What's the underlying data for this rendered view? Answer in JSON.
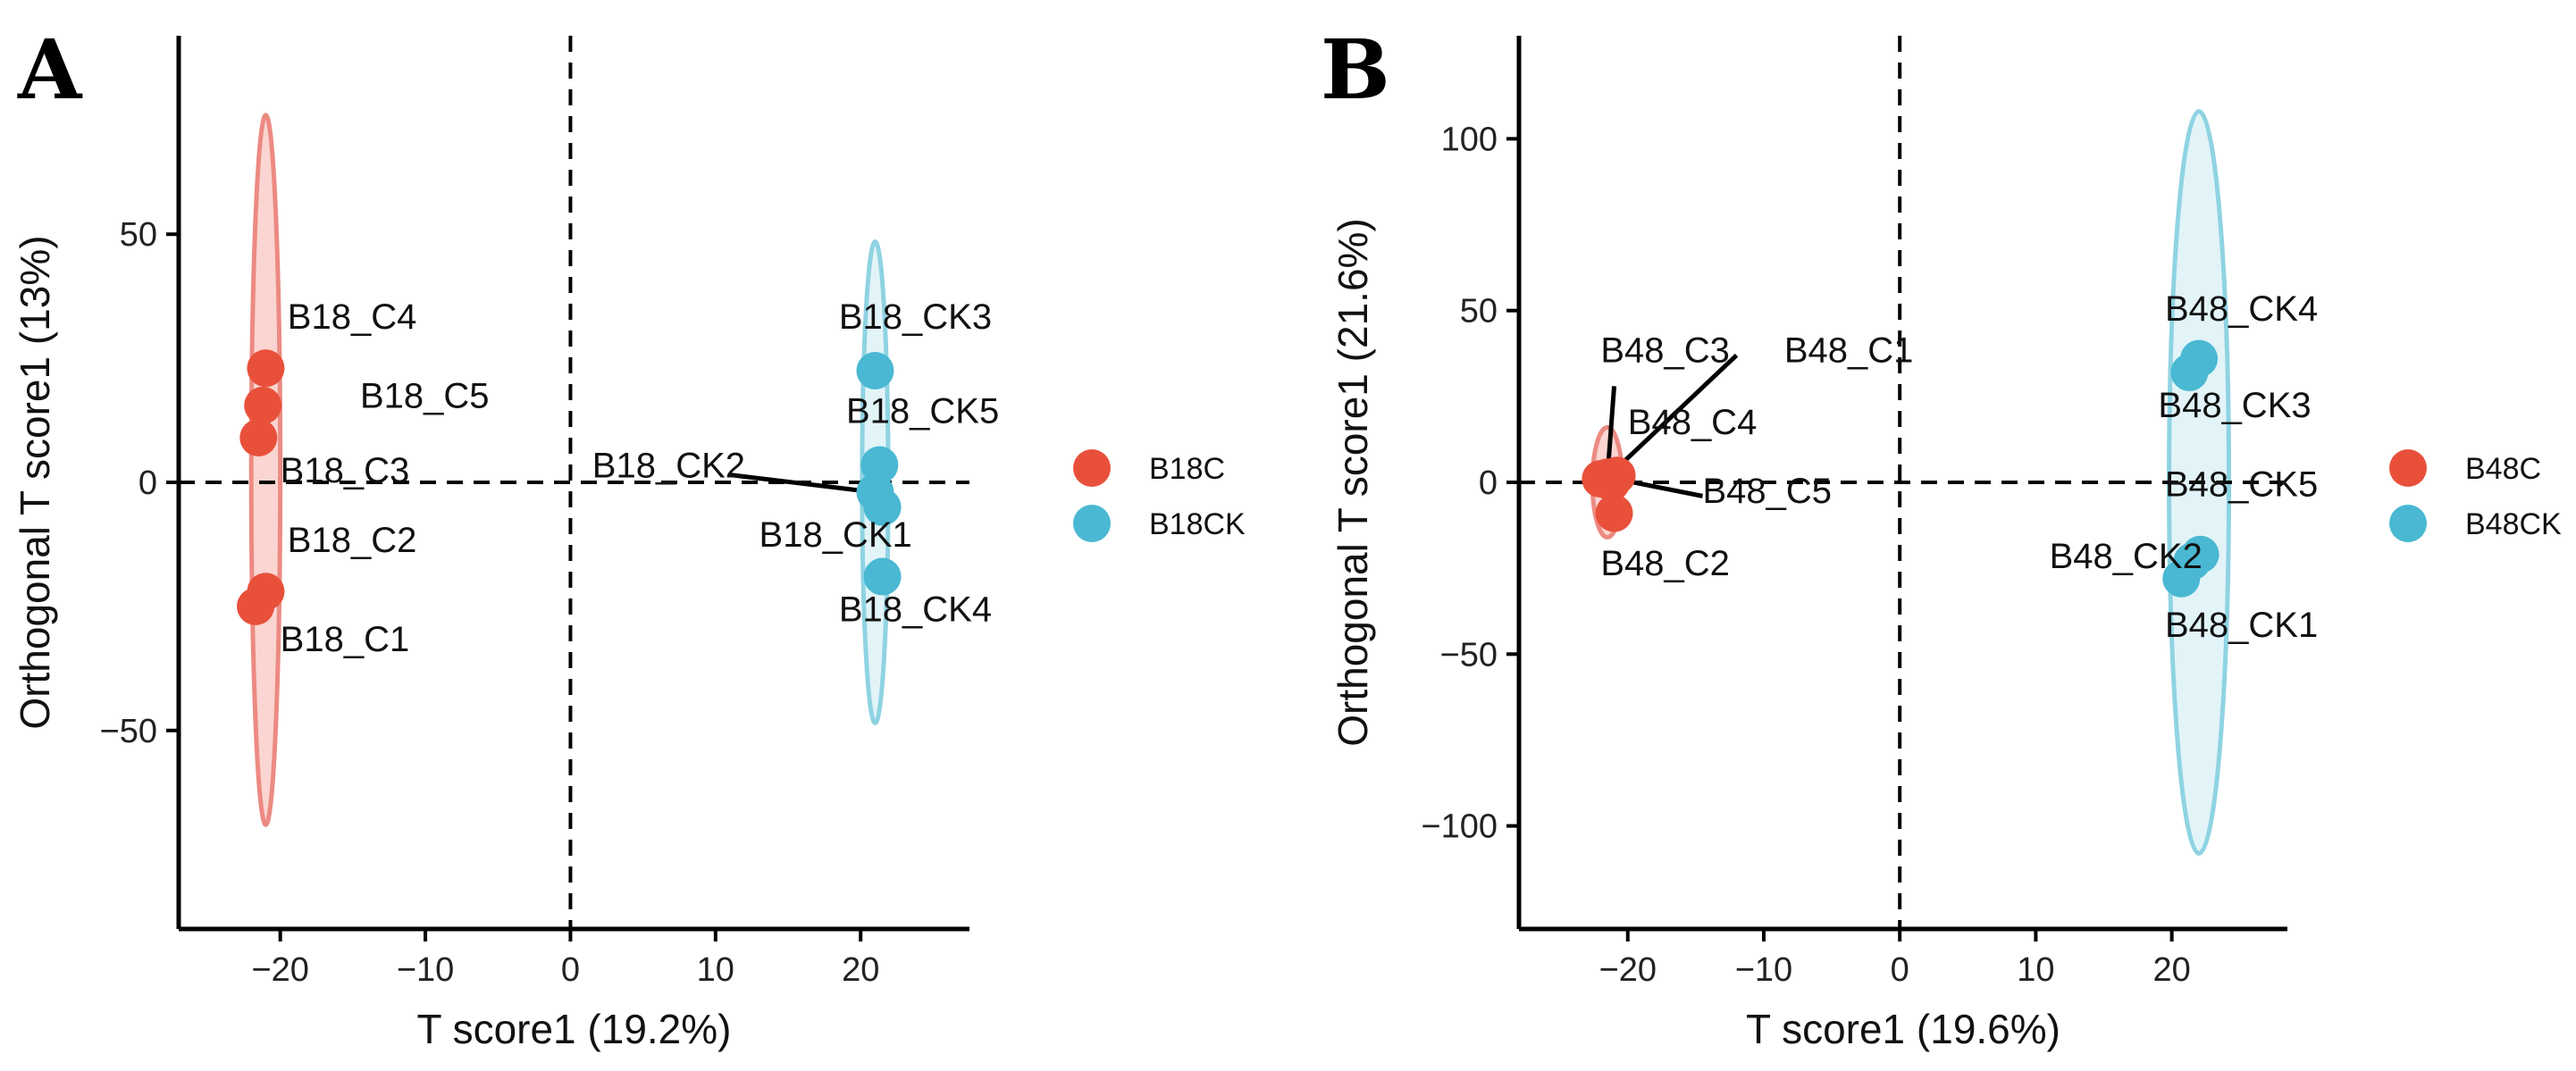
{
  "figure": {
    "panels": [
      "A",
      "B"
    ]
  },
  "chart_data": [
    {
      "panel": "A",
      "type": "scatter",
      "xlabel": "T score1 (19.2%)",
      "ylabel": "Orthogonal T score1 (13%)",
      "xlim": [
        -27,
        27.5
      ],
      "ylim": [
        -90,
        90
      ],
      "xticks": [
        -20,
        -10,
        0,
        10,
        20
      ],
      "yticks": [
        -50,
        0,
        50
      ],
      "xtick_labels": [
        "−20",
        "−10",
        "0",
        "10",
        "20"
      ],
      "ytick_labels": [
        "−50",
        "0",
        "50"
      ],
      "reference_lines": {
        "x": 0,
        "y": 0,
        "style": "dashed"
      },
      "legend": {
        "placement": "right",
        "entries": [
          {
            "label": "B18C",
            "color": "#e8503a"
          },
          {
            "label": "B18CK",
            "color": "#4ab8d2"
          }
        ]
      },
      "ellipses": [
        {
          "group": "B18C",
          "center": [
            -21,
            2.5
          ],
          "x_half": 1.0,
          "y_half": 71.5,
          "fill": "#f3a29a",
          "stroke": "#ec8a82"
        },
        {
          "group": "B18CK",
          "center": [
            21,
            0
          ],
          "x_half": 0.9,
          "y_half": 48.5,
          "fill": "#bfe6ef",
          "stroke": "#8fd3e2"
        }
      ],
      "series": [
        {
          "name": "B18C",
          "color": "#e8503a",
          "points": [
            {
              "label": "B18_C1",
              "x": -21.7,
              "y": -25
            },
            {
              "label": "B18_C2",
              "x": -21.0,
              "y": -22
            },
            {
              "label": "B18_C3",
              "x": -21.5,
              "y": 9
            },
            {
              "label": "B18_C4",
              "x": -21.0,
              "y": 23
            },
            {
              "label": "B18_C5",
              "x": -21.2,
              "y": 15.5
            }
          ]
        },
        {
          "name": "B18CK",
          "color": "#4ab8d2",
          "points": [
            {
              "label": "B18_CK1",
              "x": 21.5,
              "y": -5
            },
            {
              "label": "B18_CK2",
              "x": 21.0,
              "y": -2
            },
            {
              "label": "B18_CK3",
              "x": 21.0,
              "y": 22.5
            },
            {
              "label": "B18_CK4",
              "x": 21.5,
              "y": -19
            },
            {
              "label": "B18_CK5",
              "x": 21.3,
              "y": 3.5
            }
          ]
        }
      ],
      "annotations": [
        {
          "text": "B18_C4",
          "x": -19.5,
          "y": 31
        },
        {
          "text": "B18_C5",
          "x": -14.5,
          "y": 15
        },
        {
          "text": "B18_C3",
          "x": -20,
          "y": 0
        },
        {
          "text": "B18_C2",
          "x": -19.5,
          "y": -14
        },
        {
          "text": "B18_C1",
          "x": -20,
          "y": -34
        },
        {
          "text": "B18_CK3",
          "x": 18.5,
          "y": 31
        },
        {
          "text": "B18_CK5",
          "x": 19,
          "y": 12
        },
        {
          "text": "B18_CK2",
          "x": 1.5,
          "y": 1
        },
        {
          "text": "B18_CK1",
          "x": 13,
          "y": -13
        },
        {
          "text": "B18_CK4",
          "x": 18.5,
          "y": -28
        }
      ],
      "leader_lines": [
        {
          "from": [
            11,
            1.5
          ],
          "to": [
            21,
            -2
          ]
        }
      ]
    },
    {
      "panel": "B",
      "type": "scatter",
      "xlabel": "T score1 (19.6%)",
      "ylabel": "Orthogonal T score1 (21.6%)",
      "xlim": [
        -28,
        28.5
      ],
      "ylim": [
        -130,
        130
      ],
      "xticks": [
        -20,
        -10,
        0,
        10,
        20
      ],
      "yticks": [
        -100,
        -50,
        0,
        50,
        100
      ],
      "xtick_labels": [
        "−20",
        "−10",
        "0",
        "10",
        "20"
      ],
      "ytick_labels": [
        "−100",
        "−50",
        "0",
        "50",
        "100"
      ],
      "reference_lines": {
        "x": 0,
        "y": 0,
        "style": "dashed"
      },
      "legend": {
        "placement": "right",
        "entries": [
          {
            "label": "B48C",
            "color": "#e8503a"
          },
          {
            "label": "B48CK",
            "color": "#4ab8d2"
          }
        ]
      },
      "ellipses": [
        {
          "group": "B48C",
          "center": [
            -21.5,
            0
          ],
          "x_half": 1.1,
          "y_half": 16,
          "fill": "#f3a29a",
          "stroke": "#ec8a82"
        },
        {
          "group": "B48CK",
          "center": [
            22,
            0
          ],
          "x_half": 2.2,
          "y_half": 108,
          "fill": "#bfe6ef",
          "stroke": "#8fd3e2"
        }
      ],
      "series": [
        {
          "name": "B48C",
          "color": "#e8503a",
          "points": [
            {
              "label": "B48_C1",
              "x": -21.5,
              "y": 1.5
            },
            {
              "label": "B48_C2",
              "x": -21,
              "y": -9
            },
            {
              "label": "B48_C3",
              "x": -22,
              "y": 1
            },
            {
              "label": "B48_C4",
              "x": -20.8,
              "y": 2
            },
            {
              "label": "B48_C5",
              "x": -21.2,
              "y": 0
            }
          ]
        },
        {
          "name": "B48CK",
          "color": "#4ab8d2",
          "points": [
            {
              "label": "B48_CK1",
              "x": 20.7,
              "y": -28
            },
            {
              "label": "B48_CK2",
              "x": 21.5,
              "y": -23
            },
            {
              "label": "B48_CK3",
              "x": 21.3,
              "y": 32
            },
            {
              "label": "B48_CK4",
              "x": 22.0,
              "y": 36
            },
            {
              "label": "B48_CK5",
              "x": 22.1,
              "y": -21
            }
          ]
        }
      ],
      "annotations": [
        {
          "text": "B48_C3",
          "x": -22,
          "y": 35
        },
        {
          "text": "B48_C1",
          "x": -8.5,
          "y": 35
        },
        {
          "text": "B48_C4",
          "x": -20,
          "y": 14
        },
        {
          "text": "B48_C5",
          "x": -14.5,
          "y": -6
        },
        {
          "text": "B48_C2",
          "x": -22,
          "y": -27
        },
        {
          "text": "B48_CK4",
          "x": 19.5,
          "y": 47
        },
        {
          "text": "B48_CK3",
          "x": 19,
          "y": 19
        },
        {
          "text": "B48_CK5",
          "x": 19.5,
          "y": -4
        },
        {
          "text": "B48_CK2",
          "x": 11,
          "y": -25
        },
        {
          "text": "B48_CK1",
          "x": 19.5,
          "y": -45
        }
      ],
      "leader_lines": [
        {
          "from": [
            -21.5,
            1.5
          ],
          "to": [
            -21,
            28
          ]
        },
        {
          "from": [
            -21.5,
            1.5
          ],
          "to": [
            -12,
            37
          ]
        },
        {
          "from": [
            -21.5,
            1.5
          ],
          "to": [
            -14.5,
            -4
          ]
        }
      ]
    }
  ]
}
